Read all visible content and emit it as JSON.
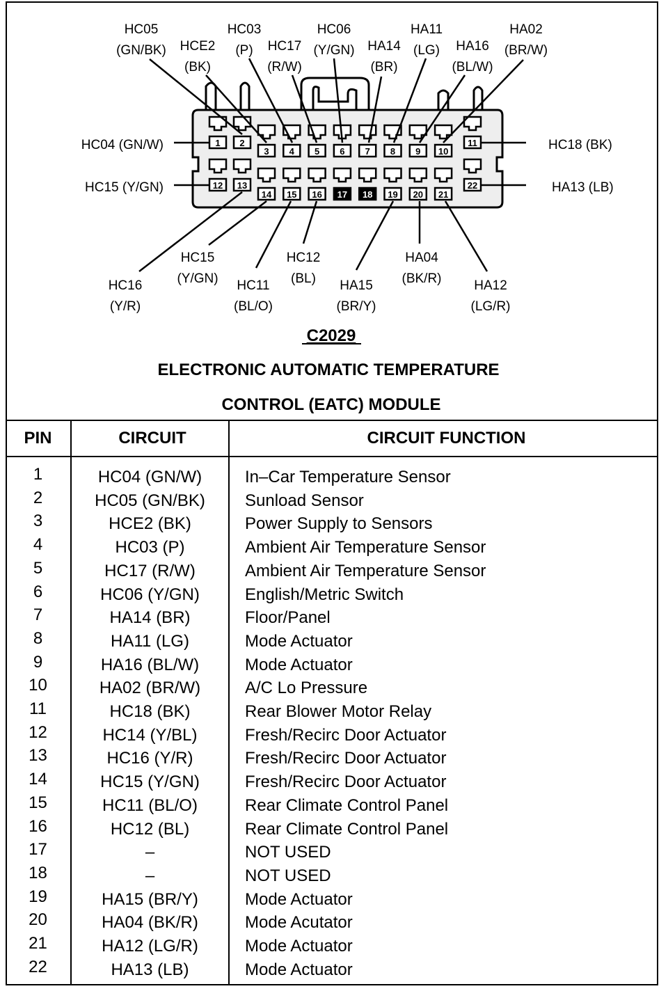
{
  "diagram": {
    "connector_id": "C2029",
    "title_line1": "ELECTRONIC AUTOMATIC TEMPERATURE",
    "title_line2": "CONTROL (EATC) MODULE",
    "pins": [
      {
        "n": "1",
        "unused": false
      },
      {
        "n": "2",
        "unused": false
      },
      {
        "n": "3",
        "unused": false
      },
      {
        "n": "4",
        "unused": false
      },
      {
        "n": "5",
        "unused": false
      },
      {
        "n": "6",
        "unused": false
      },
      {
        "n": "7",
        "unused": false
      },
      {
        "n": "8",
        "unused": false
      },
      {
        "n": "9",
        "unused": false
      },
      {
        "n": "10",
        "unused": false
      },
      {
        "n": "11",
        "unused": false
      },
      {
        "n": "12",
        "unused": false
      },
      {
        "n": "13",
        "unused": false
      },
      {
        "n": "14",
        "unused": false
      },
      {
        "n": "15",
        "unused": false
      },
      {
        "n": "16",
        "unused": false
      },
      {
        "n": "17",
        "unused": true
      },
      {
        "n": "18",
        "unused": true
      },
      {
        "n": "19",
        "unused": false
      },
      {
        "n": "20",
        "unused": false
      },
      {
        "n": "21",
        "unused": false
      },
      {
        "n": "22",
        "unused": false
      }
    ],
    "labels": {
      "hc05": {
        "code": "HC05",
        "color": "(GN/BK)"
      },
      "hce2": {
        "code": "HCE2",
        "color": "(BK)"
      },
      "hc03": {
        "code": "HC03",
        "color": "(P)"
      },
      "hc17": {
        "code": "HC17",
        "color": "(R/W)"
      },
      "hc06": {
        "code": "HC06",
        "color": "(Y/GN)"
      },
      "ha14": {
        "code": "HA14",
        "color": "(BR)"
      },
      "ha11": {
        "code": "HA11",
        "color": "(LG)"
      },
      "ha16": {
        "code": "HA16",
        "color": "(BL/W)"
      },
      "ha02": {
        "code": "HA02",
        "color": "(BR/W)"
      },
      "hc04_side": "HC04 (GN/W)",
      "hc15_side": "HC15 (Y/GN)",
      "hc18_side": "HC18 (BK)",
      "ha13_side": "HA13 (LB)",
      "hc15b": {
        "code": "HC15",
        "color": "(Y/GN)"
      },
      "hc16": {
        "code": "HC16",
        "color": "(Y/R)"
      },
      "hc11": {
        "code": "HC11",
        "color": "(BL/O)"
      },
      "hc12": {
        "code": "HC12",
        "color": "(BL)"
      },
      "ha15": {
        "code": "HA15",
        "color": "(BR/Y)"
      },
      "ha04": {
        "code": "HA04",
        "color": "(BK/R)"
      },
      "ha12": {
        "code": "HA12",
        "color": "(LG/R)"
      }
    }
  },
  "table": {
    "headers": {
      "pin": "PIN",
      "circuit": "CIRCUIT",
      "function": "CIRCUIT FUNCTION"
    },
    "rows": [
      {
        "pin": "1",
        "circuit": "HC04 (GN/W)",
        "function": "In–Car Temperature Sensor"
      },
      {
        "pin": "2",
        "circuit": "HC05 (GN/BK)",
        "function": "Sunload Sensor"
      },
      {
        "pin": "3",
        "circuit": "HCE2 (BK)",
        "function": "Power Supply to Sensors"
      },
      {
        "pin": "4",
        "circuit": "HC03 (P)",
        "function": "Ambient Air Temperature Sensor"
      },
      {
        "pin": "5",
        "circuit": "HC17 (R/W)",
        "function": "Ambient Air Temperature Sensor"
      },
      {
        "pin": "6",
        "circuit": "HC06 (Y/GN)",
        "function": "English/Metric Switch"
      },
      {
        "pin": "7",
        "circuit": "HA14 (BR)",
        "function": "Floor/Panel"
      },
      {
        "pin": "8",
        "circuit": "HA11 (LG)",
        "function": "Mode Actuator"
      },
      {
        "pin": "9",
        "circuit": "HA16 (BL/W)",
        "function": "Mode Actuator"
      },
      {
        "pin": "10",
        "circuit": "HA02 (BR/W)",
        "function": "A/C Lo Pressure"
      },
      {
        "pin": "11",
        "circuit": "HC18 (BK)",
        "function": "Rear Blower Motor Relay"
      },
      {
        "pin": "12",
        "circuit": "HC14 (Y/BL)",
        "function": "Fresh/Recirc Door Actuator"
      },
      {
        "pin": "13",
        "circuit": "HC16 (Y/R)",
        "function": "Fresh/Recirc Door Actuator"
      },
      {
        "pin": "14",
        "circuit": "HC15 (Y/GN)",
        "function": "Fresh/Recirc Door Actuator"
      },
      {
        "pin": "15",
        "circuit": "HC11 (BL/O)",
        "function": "Rear Climate Control Panel"
      },
      {
        "pin": "16",
        "circuit": "HC12 (BL)",
        "function": "Rear Climate Control Panel"
      },
      {
        "pin": "17",
        "circuit": "–",
        "function": "NOT USED"
      },
      {
        "pin": "18",
        "circuit": "–",
        "function": "NOT USED"
      },
      {
        "pin": "19",
        "circuit": "HA15 (BR/Y)",
        "function": "Mode Actuator"
      },
      {
        "pin": "20",
        "circuit": "HA04 (BK/R)",
        "function": "Mode Acutator"
      },
      {
        "pin": "21",
        "circuit": "HA12 (LG/R)",
        "function": "Mode Actuator"
      },
      {
        "pin": "22",
        "circuit": "HA13 (LB)",
        "function": "Mode Actuator"
      }
    ]
  }
}
